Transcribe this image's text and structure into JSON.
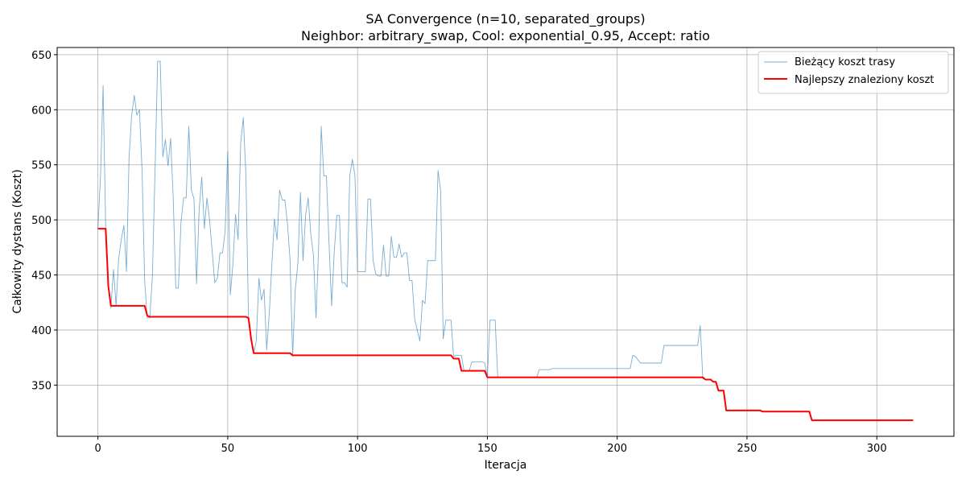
{
  "chart_data": {
    "type": "line",
    "title": "SA Convergence (n=10, separated_groups)",
    "subtitle": "Neighbor: arbitrary_swap, Cool: exponential_0.95, Accept: ratio",
    "xlabel": "Iteracja",
    "ylabel": "Całkowity dystans (Koszt)",
    "xlim": [
      -15.7,
      329.7
    ],
    "ylim": [
      303.5,
      656.5
    ],
    "xticks": [
      0,
      50,
      100,
      150,
      200,
      250,
      300
    ],
    "yticks": [
      350,
      400,
      450,
      500,
      550,
      600,
      650
    ],
    "grid": true,
    "legend_position": "top-right",
    "series": [
      {
        "name": "Bieżący koszt trasy",
        "color": "#1f77b4",
        "points": [
          [
            0,
            492
          ],
          [
            1,
            540
          ],
          [
            2,
            622
          ],
          [
            3,
            492
          ],
          [
            4,
            440
          ],
          [
            5,
            420
          ],
          [
            6,
            455
          ],
          [
            7,
            422
          ],
          [
            8,
            465
          ],
          [
            9,
            482
          ],
          [
            10,
            495
          ],
          [
            11,
            453
          ],
          [
            12,
            557
          ],
          [
            13,
            595
          ],
          [
            14,
            613
          ],
          [
            15,
            595
          ],
          [
            16,
            600
          ],
          [
            17,
            545
          ],
          [
            18,
            445
          ],
          [
            19,
            411
          ],
          [
            20,
            411
          ],
          [
            21,
            450
          ],
          [
            22,
            545
          ],
          [
            23,
            644
          ],
          [
            24,
            644
          ],
          [
            25,
            557
          ],
          [
            26,
            573
          ],
          [
            27,
            549
          ],
          [
            28,
            574
          ],
          [
            29,
            520
          ],
          [
            30,
            438
          ],
          [
            31,
            438
          ],
          [
            32,
            498
          ],
          [
            33,
            520
          ],
          [
            34,
            520
          ],
          [
            35,
            585
          ],
          [
            36,
            527
          ],
          [
            37,
            519
          ],
          [
            38,
            442
          ],
          [
            39,
            510
          ],
          [
            40,
            539
          ],
          [
            41,
            492
          ],
          [
            42,
            520
          ],
          [
            43,
            500
          ],
          [
            44,
            472
          ],
          [
            45,
            443
          ],
          [
            46,
            447
          ],
          [
            47,
            470
          ],
          [
            48,
            470
          ],
          [
            49,
            490
          ],
          [
            50,
            562
          ],
          [
            51,
            432
          ],
          [
            52,
            460
          ],
          [
            53,
            505
          ],
          [
            54,
            482
          ],
          [
            55,
            570
          ],
          [
            56,
            593
          ],
          [
            57,
            540
          ],
          [
            58,
            411
          ],
          [
            59,
            391
          ],
          [
            60,
            379
          ],
          [
            61,
            390
          ],
          [
            62,
            447
          ],
          [
            63,
            427
          ],
          [
            64,
            437
          ],
          [
            65,
            382
          ],
          [
            66,
            415
          ],
          [
            67,
            460
          ],
          [
            68,
            501
          ],
          [
            69,
            482
          ],
          [
            70,
            527
          ],
          [
            71,
            518
          ],
          [
            72,
            518
          ],
          [
            73,
            497
          ],
          [
            74,
            464
          ],
          [
            75,
            376
          ],
          [
            76,
            436
          ],
          [
            77,
            460
          ],
          [
            78,
            525
          ],
          [
            79,
            463
          ],
          [
            80,
            505
          ],
          [
            81,
            520
          ],
          [
            82,
            487
          ],
          [
            83,
            468
          ],
          [
            84,
            411
          ],
          [
            85,
            475
          ],
          [
            86,
            585
          ],
          [
            87,
            540
          ],
          [
            88,
            540
          ],
          [
            89,
            480
          ],
          [
            90,
            422
          ],
          [
            91,
            470
          ],
          [
            92,
            504
          ],
          [
            93,
            504
          ],
          [
            94,
            443
          ],
          [
            95,
            443
          ],
          [
            96,
            439
          ],
          [
            97,
            540
          ],
          [
            98,
            555
          ],
          [
            99,
            540
          ],
          [
            100,
            453
          ],
          [
            101,
            453
          ],
          [
            102,
            453
          ],
          [
            103,
            453
          ],
          [
            104,
            519
          ],
          [
            105,
            519
          ],
          [
            106,
            463
          ],
          [
            107,
            451
          ],
          [
            108,
            449
          ],
          [
            109,
            449
          ],
          [
            110,
            477
          ],
          [
            111,
            449
          ],
          [
            112,
            449
          ],
          [
            113,
            485
          ],
          [
            114,
            466
          ],
          [
            115,
            466
          ],
          [
            116,
            478
          ],
          [
            117,
            466
          ],
          [
            118,
            470
          ],
          [
            119,
            470
          ],
          [
            120,
            445
          ],
          [
            121,
            445
          ],
          [
            122,
            410
          ],
          [
            123,
            400
          ],
          [
            124,
            390
          ],
          [
            125,
            427
          ],
          [
            126,
            424
          ],
          [
            127,
            463
          ],
          [
            128,
            463
          ],
          [
            129,
            463
          ],
          [
            130,
            463
          ],
          [
            131,
            545
          ],
          [
            132,
            527
          ],
          [
            133,
            392
          ],
          [
            134,
            409
          ],
          [
            135,
            409
          ],
          [
            136,
            409
          ],
          [
            137,
            376
          ],
          [
            138,
            377
          ],
          [
            139,
            377
          ],
          [
            140,
            377
          ],
          [
            141,
            363
          ],
          [
            142,
            363
          ],
          [
            143,
            363
          ],
          [
            144,
            371
          ],
          [
            145,
            371
          ],
          [
            146,
            371
          ],
          [
            147,
            371
          ],
          [
            148,
            371
          ],
          [
            149,
            370
          ],
          [
            150,
            357
          ],
          [
            151,
            409
          ],
          [
            152,
            409
          ],
          [
            153,
            409
          ],
          [
            154,
            357
          ],
          [
            169,
            357
          ],
          [
            170,
            364
          ],
          [
            174,
            364
          ],
          [
            175,
            365
          ],
          [
            205,
            365
          ],
          [
            206,
            377
          ],
          [
            207,
            376
          ],
          [
            208,
            373
          ],
          [
            209,
            370
          ],
          [
            217,
            370
          ],
          [
            218,
            386
          ],
          [
            231,
            386
          ],
          [
            232,
            404
          ],
          [
            233,
            355
          ]
        ]
      },
      {
        "name": "Najlepszy znaleziony koszt",
        "color": "#ff0000",
        "points": [
          [
            0,
            492
          ],
          [
            1,
            492
          ],
          [
            2,
            492
          ],
          [
            3,
            492
          ],
          [
            4,
            440
          ],
          [
            5,
            422
          ],
          [
            6,
            422
          ],
          [
            18,
            422
          ],
          [
            19,
            413
          ],
          [
            20,
            412
          ],
          [
            57,
            412
          ],
          [
            58,
            411
          ],
          [
            59,
            392
          ],
          [
            60,
            379
          ],
          [
            74,
            379
          ],
          [
            75,
            377
          ],
          [
            136,
            377
          ],
          [
            137,
            374
          ],
          [
            139,
            374
          ],
          [
            140,
            363
          ],
          [
            149,
            363
          ],
          [
            150,
            357
          ],
          [
            233,
            357
          ],
          [
            234,
            355
          ],
          [
            236,
            355
          ],
          [
            237,
            353
          ],
          [
            238,
            353
          ],
          [
            239,
            345
          ],
          [
            241,
            345
          ],
          [
            242,
            327
          ],
          [
            245,
            327
          ],
          [
            246,
            327
          ],
          [
            255,
            327
          ],
          [
            256,
            326
          ],
          [
            274,
            326
          ],
          [
            275,
            318
          ],
          [
            314,
            318
          ]
        ]
      }
    ]
  }
}
